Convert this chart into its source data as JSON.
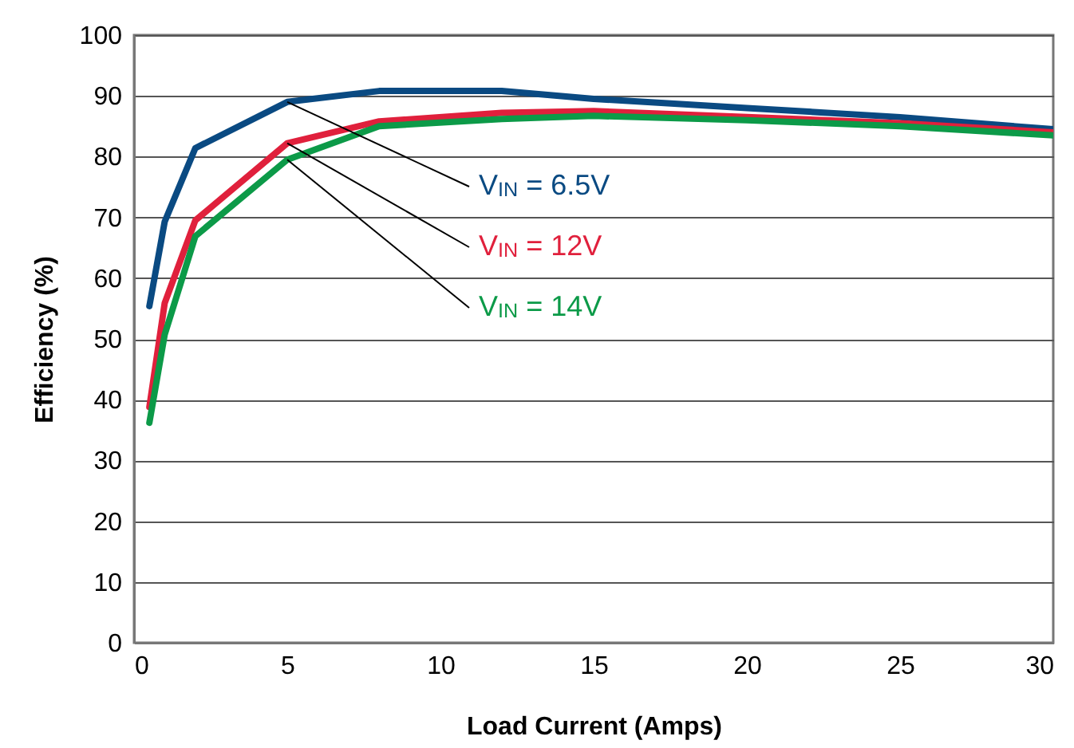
{
  "chart_data": {
    "type": "line",
    "xlabel": "Load Current (Amps)",
    "ylabel": "Efficiency (%)",
    "x": [
      0.5,
      1,
      2,
      5,
      8,
      12,
      15,
      20,
      25,
      30
    ],
    "series": [
      {
        "name": "V$_{IN}$ = 6.5V",
        "color": "#0a4a82",
        "values": [
          55.4,
          69.3,
          81.4,
          89,
          90.8,
          90.8,
          89.5,
          88,
          86.5,
          84.5
        ]
      },
      {
        "name": "V$_{IN}$ = 12V",
        "color": "#e0203c",
        "values": [
          38.8,
          55.9,
          69.5,
          82.2,
          85.8,
          87.2,
          87.5,
          86.5,
          85.5,
          84
        ]
      },
      {
        "name": "V$_{IN}$ = 14V",
        "color": "#0c9a48",
        "values": [
          36.2,
          50.7,
          66.9,
          79.5,
          85,
          86.2,
          86.7,
          86,
          85,
          83.5
        ]
      }
    ],
    "xlim": [
      0,
      30
    ],
    "xticks": [
      0,
      5,
      10,
      15,
      20,
      25,
      30
    ],
    "ylim": [
      0,
      100
    ],
    "yticks": [
      0,
      10,
      20,
      30,
      40,
      50,
      60,
      70,
      80,
      90,
      100
    ],
    "grid": "y",
    "legend": false,
    "marker": "none",
    "line_style": "solid"
  }
}
